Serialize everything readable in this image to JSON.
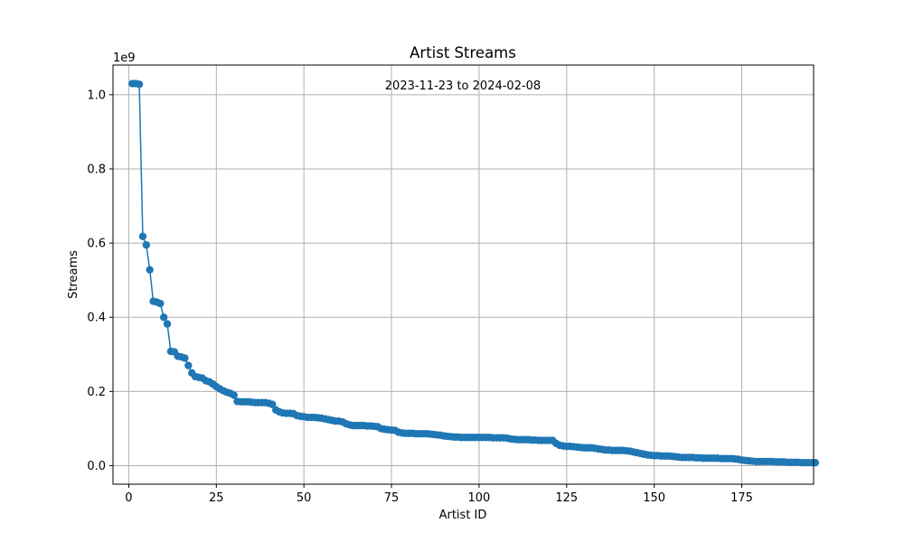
{
  "chart_data": {
    "type": "line",
    "title": "Artist Streams",
    "annotation": "2023-11-23 to 2024-02-08",
    "xlabel": "Artist ID",
    "ylabel": "Streams",
    "y_offset_label": "1e9",
    "xlim": [
      -4.5,
      195.5
    ],
    "ylim": [
      -0.05,
      1.08
    ],
    "y_multiplier": 1000000000,
    "x_ticks": [
      0,
      25,
      50,
      75,
      100,
      125,
      150,
      175
    ],
    "y_ticks": [
      0.0,
      0.2,
      0.4,
      0.6,
      0.8,
      1.0
    ],
    "y_tick_labels": [
      "0.0",
      "0.2",
      "0.4",
      "0.6",
      "0.8",
      "1.0"
    ],
    "grid": true,
    "marker": "circle",
    "color": "#1f77b4",
    "series": [
      {
        "x_start": 1,
        "values": [
          1.03,
          1.03,
          1.028,
          0.618,
          0.595,
          0.528,
          0.443,
          0.441,
          0.437,
          0.4,
          0.382,
          0.308,
          0.307,
          0.295,
          0.293,
          0.29,
          0.27,
          0.25,
          0.24,
          0.238,
          0.236,
          0.229,
          0.226,
          0.22,
          0.213,
          0.207,
          0.202,
          0.198,
          0.195,
          0.19,
          0.173,
          0.172,
          0.172,
          0.172,
          0.171,
          0.17,
          0.17,
          0.17,
          0.17,
          0.168,
          0.165,
          0.15,
          0.145,
          0.142,
          0.141,
          0.141,
          0.14,
          0.135,
          0.133,
          0.132,
          0.13,
          0.13,
          0.13,
          0.129,
          0.128,
          0.126,
          0.124,
          0.122,
          0.12,
          0.12,
          0.118,
          0.113,
          0.11,
          0.108,
          0.108,
          0.108,
          0.108,
          0.107,
          0.107,
          0.106,
          0.105,
          0.1,
          0.098,
          0.097,
          0.096,
          0.095,
          0.09,
          0.088,
          0.087,
          0.087,
          0.087,
          0.086,
          0.086,
          0.086,
          0.086,
          0.085,
          0.084,
          0.083,
          0.082,
          0.08,
          0.079,
          0.078,
          0.077,
          0.077,
          0.076,
          0.076,
          0.076,
          0.076,
          0.076,
          0.076,
          0.076,
          0.076,
          0.076,
          0.075,
          0.075,
          0.075,
          0.075,
          0.074,
          0.072,
          0.071,
          0.07,
          0.07,
          0.07,
          0.07,
          0.069,
          0.069,
          0.068,
          0.068,
          0.068,
          0.068,
          0.068,
          0.06,
          0.055,
          0.053,
          0.052,
          0.052,
          0.051,
          0.05,
          0.049,
          0.048,
          0.048,
          0.048,
          0.047,
          0.045,
          0.044,
          0.042,
          0.042,
          0.041,
          0.041,
          0.041,
          0.041,
          0.04,
          0.039,
          0.037,
          0.035,
          0.033,
          0.031,
          0.029,
          0.028,
          0.027,
          0.027,
          0.026,
          0.026,
          0.026,
          0.025,
          0.024,
          0.023,
          0.022,
          0.022,
          0.022,
          0.022,
          0.021,
          0.021,
          0.02,
          0.02,
          0.02,
          0.02,
          0.02,
          0.019,
          0.019,
          0.019,
          0.019,
          0.018,
          0.017,
          0.015,
          0.014,
          0.013,
          0.012,
          0.011,
          0.011,
          0.011,
          0.011,
          0.011,
          0.011,
          0.01,
          0.01,
          0.01,
          0.009,
          0.009,
          0.009,
          0.009,
          0.008,
          0.008,
          0.008,
          0.008,
          0.008
        ]
      }
    ]
  }
}
